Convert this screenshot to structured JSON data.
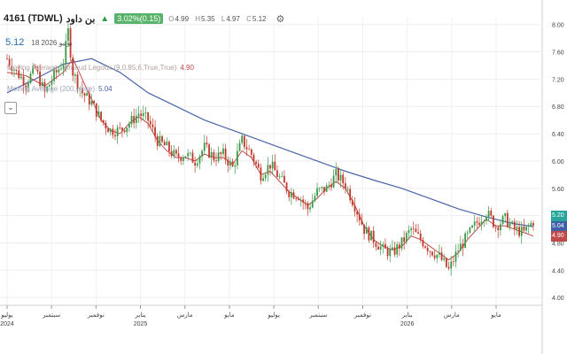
{
  "header": {
    "symbol": "4161 (TDWL)",
    "name": "بن داود",
    "change": "3.02%(0.15)",
    "open_label": "O",
    "open": "4.99",
    "high_label": "H",
    "high": "5.35",
    "low_label": "L",
    "low": "4.97",
    "close_label": "C",
    "close": "5.12",
    "settings_icon": "gear-icon",
    "change_color": "#58b368"
  },
  "subheader": {
    "price": "5.12",
    "date": "18 يونيو 2026"
  },
  "indicators": [
    {
      "label": "Moving Average - Arnaud Legoux (9,0.85,6,True,True)",
      "value": "4.90",
      "color": "#c04a4a"
    },
    {
      "label": "Moving Average (200,close)",
      "value": "5.04",
      "color": "#4a64a8"
    }
  ],
  "collapse_icon": "chevron-icon",
  "price_tags": [
    {
      "value": "5.20",
      "color": "#26a69a"
    },
    {
      "value": "5.04",
      "color": "#3f5fa8"
    },
    {
      "value": "4.90",
      "color": "#c04a4a"
    }
  ],
  "chart_data": {
    "type": "candlestick",
    "y_axis": {
      "position": "right",
      "ylim": [
        3.95,
        8.1
      ],
      "ticks": [
        "8.00",
        "7.60",
        "7.20",
        "6.80",
        "6.40",
        "6.00",
        "5.60",
        "5.20",
        "4.80",
        "4.40",
        "4.00"
      ]
    },
    "x_axis": {
      "ticks": [
        {
          "label": "يوليو",
          "year": "2024"
        },
        {
          "label": "سبتمبر",
          "year": ""
        },
        {
          "label": "نوفمبر",
          "year": ""
        },
        {
          "label": "يناير",
          "year": "2025"
        },
        {
          "label": "مارس",
          "year": ""
        },
        {
          "label": "مايو",
          "year": ""
        },
        {
          "label": "يوليو",
          "year": ""
        },
        {
          "label": "سبتمبر",
          "year": ""
        },
        {
          "label": "نوفمبر",
          "year": ""
        },
        {
          "label": "يناير",
          "year": "2026"
        },
        {
          "label": "مارس",
          "year": ""
        },
        {
          "label": "مايو",
          "year": ""
        }
      ]
    },
    "price_path": [
      [
        0,
        7.5
      ],
      [
        2,
        7.3
      ],
      [
        4,
        7.15
      ],
      [
        6,
        7.35
      ],
      [
        8,
        7.0
      ],
      [
        10,
        7.25
      ],
      [
        12,
        7.45
      ],
      [
        13,
        7.9
      ],
      [
        14,
        7.3
      ],
      [
        16,
        7.0
      ],
      [
        18,
        6.85
      ],
      [
        20,
        6.6
      ],
      [
        22,
        6.45
      ],
      [
        24,
        6.45
      ],
      [
        26,
        6.55
      ],
      [
        28,
        6.7
      ],
      [
        30,
        6.6
      ],
      [
        32,
        6.3
      ],
      [
        34,
        6.2
      ],
      [
        36,
        6.05
      ],
      [
        38,
        6.1
      ],
      [
        40,
        6.0
      ],
      [
        42,
        6.2
      ],
      [
        44,
        6.05
      ],
      [
        46,
        6.1
      ],
      [
        48,
        5.9
      ],
      [
        50,
        6.3
      ],
      [
        52,
        6.1
      ],
      [
        54,
        5.8
      ],
      [
        56,
        5.95
      ],
      [
        58,
        5.75
      ],
      [
        60,
        5.55
      ],
      [
        62,
        5.5
      ],
      [
        64,
        5.3
      ],
      [
        66,
        5.55
      ],
      [
        68,
        5.6
      ],
      [
        70,
        5.8
      ],
      [
        72,
        5.65
      ],
      [
        74,
        5.35
      ],
      [
        76,
        5.0
      ],
      [
        78,
        4.85
      ],
      [
        80,
        4.7
      ],
      [
        82,
        4.65
      ],
      [
        84,
        4.8
      ],
      [
        86,
        5.0
      ],
      [
        88,
        4.85
      ],
      [
        90,
        4.7
      ],
      [
        92,
        4.6
      ],
      [
        94,
        4.4
      ],
      [
        96,
        4.7
      ],
      [
        98,
        4.9
      ],
      [
        100,
        5.1
      ],
      [
        102,
        5.25
      ],
      [
        104,
        5.05
      ],
      [
        106,
        5.15
      ],
      [
        108,
        5.0
      ],
      [
        110,
        4.95
      ],
      [
        112,
        5.12
      ]
    ],
    "ma200_path": [
      [
        0,
        7.0
      ],
      [
        6,
        7.2
      ],
      [
        12,
        7.42
      ],
      [
        18,
        7.5
      ],
      [
        24,
        7.3
      ],
      [
        30,
        7.0
      ],
      [
        36,
        6.8
      ],
      [
        42,
        6.6
      ],
      [
        48,
        6.45
      ],
      [
        54,
        6.3
      ],
      [
        60,
        6.15
      ],
      [
        66,
        6.0
      ],
      [
        72,
        5.85
      ],
      [
        78,
        5.72
      ],
      [
        84,
        5.6
      ],
      [
        90,
        5.45
      ],
      [
        96,
        5.3
      ],
      [
        102,
        5.18
      ],
      [
        108,
        5.08
      ],
      [
        112,
        5.04
      ]
    ],
    "alma_path": [
      [
        0,
        7.3
      ],
      [
        4,
        7.25
      ],
      [
        8,
        7.1
      ],
      [
        12,
        7.3
      ],
      [
        14,
        7.5
      ],
      [
        16,
        7.2
      ],
      [
        18,
        6.9
      ],
      [
        20,
        6.6
      ],
      [
        22,
        6.45
      ],
      [
        24,
        6.4
      ],
      [
        26,
        6.55
      ],
      [
        28,
        6.65
      ],
      [
        30,
        6.55
      ],
      [
        32,
        6.3
      ],
      [
        34,
        6.15
      ],
      [
        36,
        6.05
      ],
      [
        38,
        6.05
      ],
      [
        40,
        6.0
      ],
      [
        42,
        6.1
      ],
      [
        44,
        6.05
      ],
      [
        46,
        6.05
      ],
      [
        48,
        5.95
      ],
      [
        50,
        6.15
      ],
      [
        52,
        6.05
      ],
      [
        54,
        5.8
      ],
      [
        56,
        5.85
      ],
      [
        58,
        5.7
      ],
      [
        60,
        5.55
      ],
      [
        62,
        5.45
      ],
      [
        64,
        5.35
      ],
      [
        66,
        5.45
      ],
      [
        68,
        5.6
      ],
      [
        70,
        5.7
      ],
      [
        72,
        5.6
      ],
      [
        74,
        5.35
      ],
      [
        76,
        5.05
      ],
      [
        78,
        4.85
      ],
      [
        80,
        4.75
      ],
      [
        82,
        4.7
      ],
      [
        84,
        4.75
      ],
      [
        86,
        4.9
      ],
      [
        88,
        4.85
      ],
      [
        90,
        4.75
      ],
      [
        92,
        4.65
      ],
      [
        94,
        4.55
      ],
      [
        96,
        4.65
      ],
      [
        98,
        4.85
      ],
      [
        100,
        5.0
      ],
      [
        102,
        5.15
      ],
      [
        104,
        5.05
      ],
      [
        106,
        5.05
      ],
      [
        108,
        5.0
      ],
      [
        110,
        4.95
      ],
      [
        112,
        4.9
      ]
    ]
  }
}
